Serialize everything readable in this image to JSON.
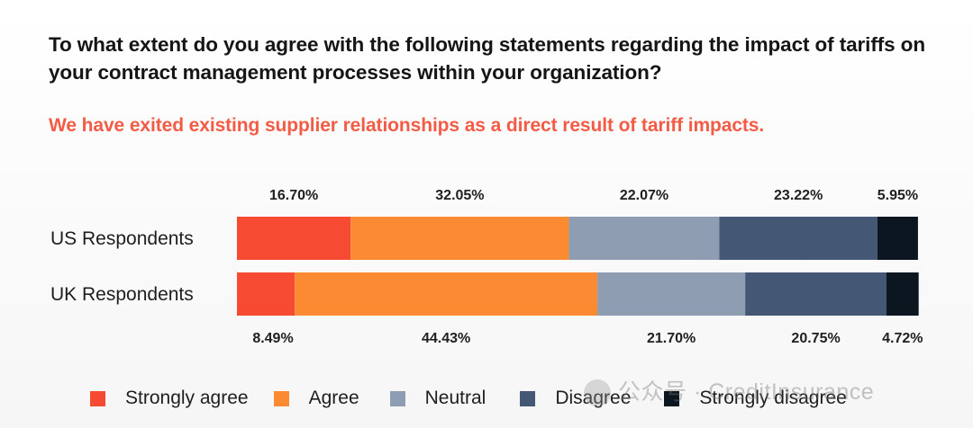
{
  "question": "To what extent do you agree with the following statements regarding the impact of tariffs on your contract management processes within your organization?",
  "statement": "We have exited existing supplier relationships as a direct result of tariff impacts.",
  "watermark": "公众号 · CreditInsurance",
  "colors": {
    "strongly_agree": "#f64a33",
    "agree": "#fb8a33",
    "neutral": "#8f9db3",
    "disagree": "#445775",
    "strongly_disagree": "#0c1620"
  },
  "chart_data": {
    "type": "bar",
    "orientation": "horizontal",
    "stacked": true,
    "percent_stacked": true,
    "categories": [
      "US Respondents",
      "UK Respondents"
    ],
    "series": [
      {
        "name": "Strongly agree",
        "color": "#f64a33",
        "values": [
          16.7,
          8.49
        ],
        "labels": [
          "16.70%",
          "8.49%"
        ]
      },
      {
        "name": "Agree",
        "color": "#fb8a33",
        "values": [
          32.05,
          44.43
        ],
        "labels": [
          "32.05%",
          "44.43%"
        ]
      },
      {
        "name": "Neutral",
        "color": "#8f9db3",
        "values": [
          22.07,
          21.7
        ],
        "labels": [
          "22.07%",
          "21.70%"
        ]
      },
      {
        "name": "Disagree",
        "color": "#445775",
        "values": [
          23.22,
          20.75
        ],
        "labels": [
          "23.22%",
          "20.75%"
        ]
      },
      {
        "name": "Strongly disagree",
        "color": "#0c1620",
        "values": [
          5.95,
          4.72
        ],
        "labels": [
          "5.95%",
          "4.72%"
        ]
      }
    ],
    "data_label_placement": [
      "above",
      "below"
    ],
    "xlim": [
      0,
      100
    ],
    "grid": false,
    "legend_position": "bottom"
  }
}
